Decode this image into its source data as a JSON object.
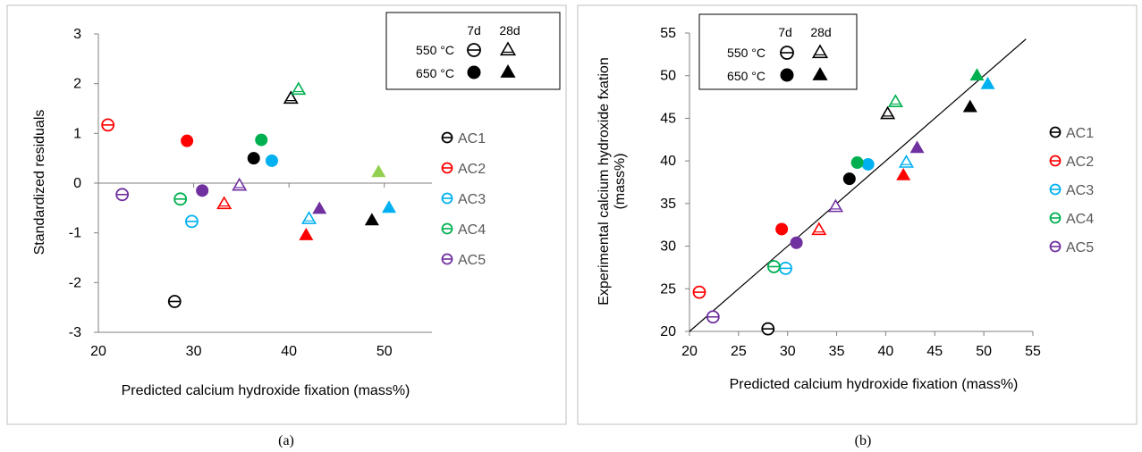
{
  "chart_data": [
    {
      "type": "scatter",
      "panel_caption": "(a)",
      "title": "",
      "xlabel": "Predicted calcium hydroxide fixation (mass%)",
      "ylabel": "Standardized residuals",
      "xlim": [
        20,
        55
      ],
      "ylim": [
        -3,
        3
      ],
      "xticks": [
        "20",
        "30",
        "40",
        "50"
      ],
      "yticks": [
        "-3",
        "-2",
        "-1",
        "0",
        "1",
        "2",
        "3"
      ],
      "grid": false,
      "legend_position": "right",
      "series": [
        {
          "name": "AC1",
          "color": "#000000",
          "points": [
            {
              "x": 28.0,
              "y": -2.38,
              "temp": "550 °C",
              "age": "7d"
            },
            {
              "x": 40.2,
              "y": 1.7,
              "temp": "550 °C",
              "age": "28d"
            },
            {
              "x": 36.3,
              "y": 0.5,
              "temp": "650 °C",
              "age": "7d"
            },
            {
              "x": 48.7,
              "y": -0.75,
              "temp": "650 °C",
              "age": "28d"
            }
          ]
        },
        {
          "name": "AC2",
          "color": "#ff0000",
          "points": [
            {
              "x": 21.0,
              "y": 1.17,
              "temp": "550 °C",
              "age": "7d"
            },
            {
              "x": 33.2,
              "y": -0.42,
              "temp": "550 °C",
              "age": "28d"
            },
            {
              "x": 29.3,
              "y": 0.85,
              "temp": "650 °C",
              "age": "7d"
            },
            {
              "x": 41.8,
              "y": -1.05,
              "temp": "650 °C",
              "age": "28d"
            }
          ]
        },
        {
          "name": "AC3",
          "color": "#00b0f0",
          "points": [
            {
              "x": 29.8,
              "y": -0.77,
              "temp": "550 °C",
              "age": "7d"
            },
            {
              "x": 42.1,
              "y": -0.72,
              "temp": "550 °C",
              "age": "28d"
            },
            {
              "x": 38.2,
              "y": 0.45,
              "temp": "650 °C",
              "age": "7d"
            },
            {
              "x": 50.5,
              "y": -0.5,
              "temp": "650 °C",
              "age": "28d"
            }
          ]
        },
        {
          "name": "AC4",
          "color": "#00b050",
          "points": [
            {
              "x": 28.6,
              "y": -0.32,
              "temp": "550 °C",
              "age": "7d"
            },
            {
              "x": 41.0,
              "y": 1.88,
              "temp": "550 °C",
              "age": "28d"
            },
            {
              "x": 37.1,
              "y": 0.87,
              "temp": "650 °C",
              "age": "7d"
            },
            {
              "x": 49.4,
              "y": 0.22,
              "temp": "650 °C",
              "age": "28d",
              "color": "#92d050"
            }
          ]
        },
        {
          "name": "AC5",
          "color": "#7030a0",
          "points": [
            {
              "x": 22.5,
              "y": -0.23,
              "temp": "550 °C",
              "age": "7d"
            },
            {
              "x": 34.8,
              "y": -0.05,
              "temp": "550 °C",
              "age": "28d"
            },
            {
              "x": 30.9,
              "y": -0.15,
              "temp": "650 °C",
              "age": "7d"
            },
            {
              "x": 43.2,
              "y": -0.52,
              "temp": "650 °C",
              "age": "28d"
            }
          ]
        }
      ]
    },
    {
      "type": "scatter",
      "panel_caption": "(b)",
      "title": "",
      "xlabel": "Predicted calcium hydroxide fixation (mass%)",
      "ylabel": "Experimental calcium hydroxide fxation (mass%)",
      "xlim": [
        20,
        55
      ],
      "ylim": [
        20,
        55
      ],
      "xticks": [
        "20",
        "25",
        "30",
        "35",
        "40",
        "45",
        "50",
        "55"
      ],
      "yticks": [
        "20",
        "25",
        "30",
        "35",
        "40",
        "45",
        "50",
        "55"
      ],
      "grid": false,
      "legend_position": "right",
      "reference_line": {
        "from": [
          20,
          20
        ],
        "to": [
          54.3,
          54.3
        ]
      },
      "series": [
        {
          "name": "AC1",
          "color": "#000000",
          "points": [
            {
              "x": 28.0,
              "y": 20.3,
              "temp": "550 °C",
              "age": "7d"
            },
            {
              "x": 40.2,
              "y": 45.5,
              "temp": "550 °C",
              "age": "28d"
            },
            {
              "x": 36.3,
              "y": 37.9,
              "temp": "650 °C",
              "age": "7d"
            },
            {
              "x": 48.6,
              "y": 46.3,
              "temp": "650 °C",
              "age": "28d"
            }
          ]
        },
        {
          "name": "AC2",
          "color": "#ff0000",
          "points": [
            {
              "x": 21.0,
              "y": 24.6,
              "temp": "550 °C",
              "age": "7d"
            },
            {
              "x": 33.2,
              "y": 31.9,
              "temp": "550 °C",
              "age": "28d"
            },
            {
              "x": 29.4,
              "y": 32.0,
              "temp": "650 °C",
              "age": "7d"
            },
            {
              "x": 41.8,
              "y": 38.3,
              "temp": "650 °C",
              "age": "28d"
            }
          ]
        },
        {
          "name": "AC3",
          "color": "#00b0f0",
          "points": [
            {
              "x": 29.8,
              "y": 27.4,
              "temp": "550 °C",
              "age": "7d"
            },
            {
              "x": 42.1,
              "y": 39.8,
              "temp": "550 °C",
              "age": "28d"
            },
            {
              "x": 38.2,
              "y": 39.6,
              "temp": "650 °C",
              "age": "7d"
            },
            {
              "x": 50.4,
              "y": 49.0,
              "temp": "650 °C",
              "age": "28d"
            }
          ]
        },
        {
          "name": "AC4",
          "color": "#00b050",
          "points": [
            {
              "x": 28.6,
              "y": 27.6,
              "temp": "550 °C",
              "age": "7d"
            },
            {
              "x": 41.0,
              "y": 46.9,
              "temp": "550 °C",
              "age": "28d"
            },
            {
              "x": 37.1,
              "y": 39.8,
              "temp": "650 °C",
              "age": "7d"
            },
            {
              "x": 49.3,
              "y": 50.0,
              "temp": "650 °C",
              "age": "28d"
            }
          ]
        },
        {
          "name": "AC5",
          "color": "#7030a0",
          "points": [
            {
              "x": 22.4,
              "y": 21.7,
              "temp": "550 °C",
              "age": "7d"
            },
            {
              "x": 34.9,
              "y": 34.6,
              "temp": "550 °C",
              "age": "28d"
            },
            {
              "x": 30.9,
              "y": 30.4,
              "temp": "650 °C",
              "age": "7d"
            },
            {
              "x": 43.2,
              "y": 41.5,
              "temp": "650 °C",
              "age": "28d"
            }
          ]
        }
      ]
    }
  ],
  "marker_key": {
    "col_7d": "7d",
    "col_28d": "28d",
    "row_550": "550 °C",
    "row_650": "650 °C"
  }
}
